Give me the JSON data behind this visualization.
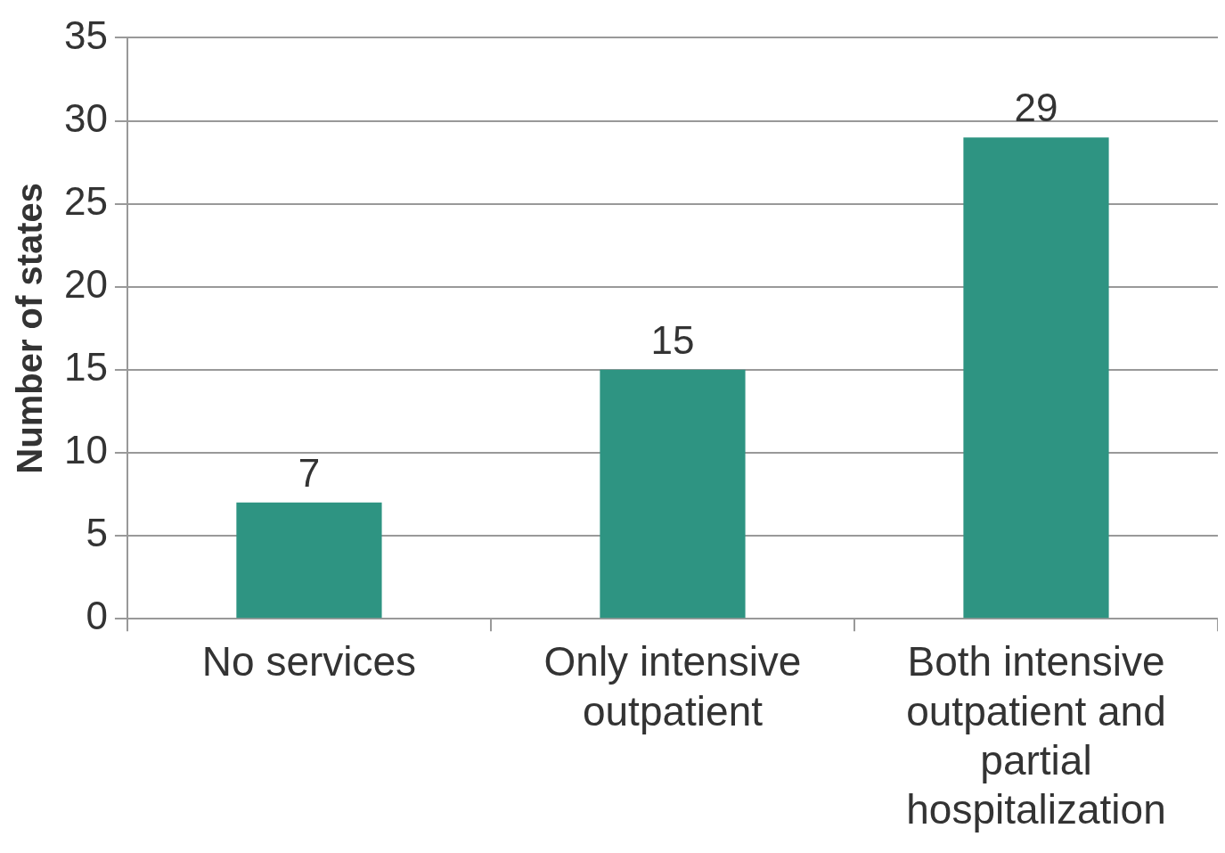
{
  "chart_data": {
    "type": "bar",
    "ylabel": "Number of states",
    "categories": [
      "No services",
      "Only intensive outpatient",
      "Both intensive outpatient and partial hospitalization"
    ],
    "values": [
      7,
      15,
      29
    ],
    "color": "#2e9482",
    "ylim": [
      0,
      35
    ],
    "yticks": [
      0,
      5,
      10,
      15,
      20,
      25,
      30,
      35
    ],
    "grid": "y",
    "data_labels": true,
    "legend": false
  }
}
